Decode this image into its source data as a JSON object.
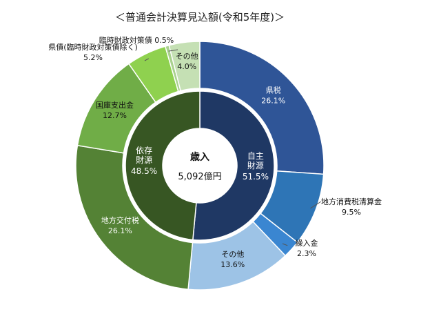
{
  "chart_data": {
    "type": "pie",
    "title": "＜普通会計決算見込額(令和5年度)＞",
    "center": {
      "title": "歳入",
      "value": "5,092億円"
    },
    "inner_ring": [
      {
        "name": "自主財源",
        "line1": "自主",
        "line2": "財源",
        "percent": 51.5,
        "percent_label": "51.5%",
        "color": "#1f3864"
      },
      {
        "name": "依存財源",
        "line1": "依存",
        "line2": "財源",
        "percent": 48.5,
        "percent_label": "48.5%",
        "color": "#375623"
      }
    ],
    "outer_ring": [
      {
        "name": "県税",
        "percent": 26.1,
        "percent_label": "26.1%",
        "color": "#2f5597",
        "label_color": "#ffffff"
      },
      {
        "name": "地方消費税清算金",
        "percent": 9.5,
        "percent_label": "9.5%",
        "color": "#2e75b6",
        "label_color": "#111111"
      },
      {
        "name": "繰入金",
        "percent": 2.3,
        "percent_label": "2.3%",
        "color": "#3a86d1",
        "label_color": "#111111"
      },
      {
        "name": "その他",
        "percent": 13.6,
        "percent_label": "13.6%",
        "color": "#9dc3e6",
        "label_color": "#111111"
      },
      {
        "name": "地方交付税",
        "percent": 26.1,
        "percent_label": "26.1%",
        "color": "#548235",
        "label_color": "#ffffff"
      },
      {
        "name": "国庫支出金",
        "percent": 12.7,
        "percent_label": "12.7%",
        "color": "#70ad47",
        "label_color": "#111111"
      },
      {
        "name": "県債(臨時財政対策債除く)",
        "percent": 5.2,
        "percent_label": "5.2%",
        "color": "#8fd14f",
        "label_color": "#111111"
      },
      {
        "name": "臨時財政対策債",
        "percent": 0.5,
        "percent_label": "0.5%",
        "color": "#a9d18e",
        "label_color": "#111111"
      },
      {
        "name": "その他",
        "percent": 4.0,
        "percent_label": "4.0%",
        "color": "#c5e0b4",
        "label_color": "#111111"
      }
    ]
  }
}
